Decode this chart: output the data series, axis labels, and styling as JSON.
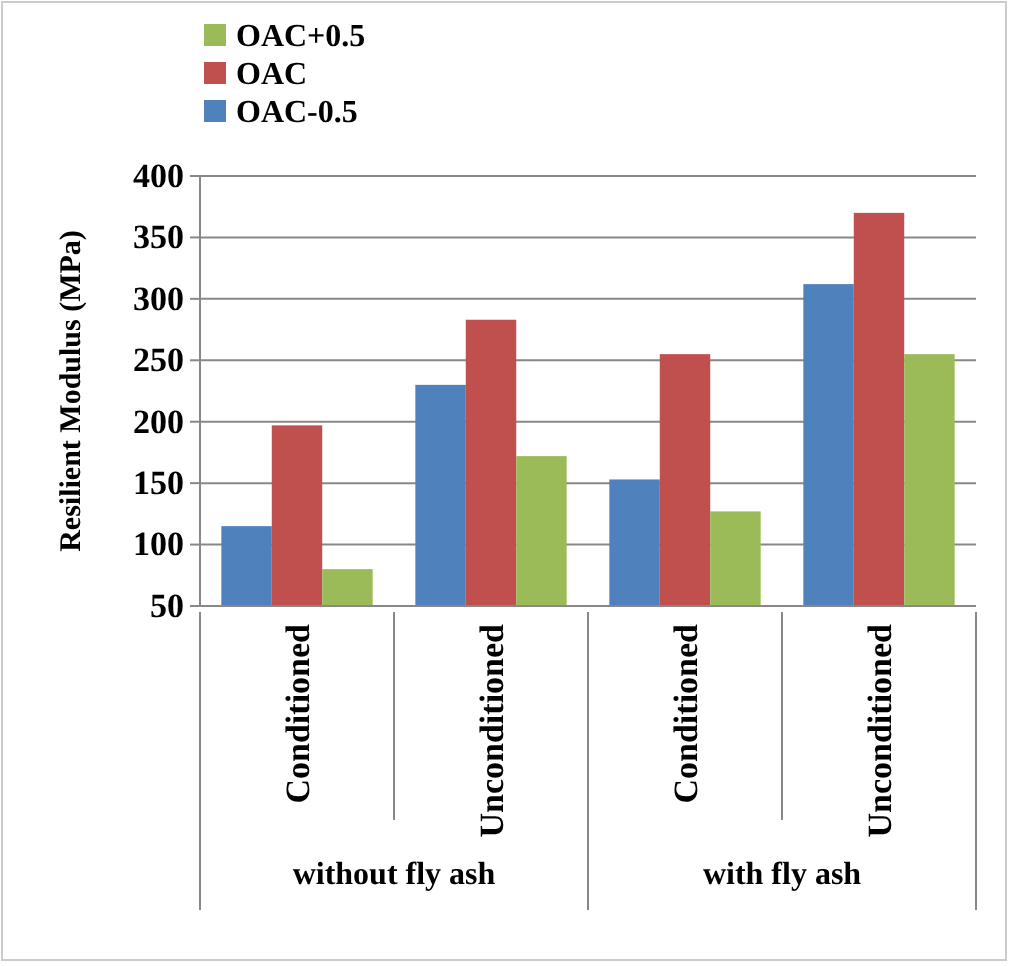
{
  "chart_data": {
    "type": "bar",
    "ylabel": "Resilient Modulus  (MPa)",
    "categories": [
      "Conditioned",
      "Unconditioned",
      "Conditioned",
      "Unconditioned"
    ],
    "series": [
      {
        "name": "OAC-0.5",
        "color": "#4f81bd",
        "values": [
          115,
          230,
          153,
          312
        ]
      },
      {
        "name": "OAC",
        "color": "#c0504d",
        "values": [
          197,
          283,
          255,
          370
        ]
      },
      {
        "name": "OAC+0.5",
        "color": "#9bbb59",
        "values": [
          80,
          172,
          127,
          255
        ]
      }
    ],
    "annotations": [
      "without fly ash",
      "with fly ash"
    ],
    "ylim": [
      50,
      400
    ],
    "yticks": [
      50,
      100,
      150,
      200,
      250,
      300,
      350,
      400
    ],
    "grid": "y",
    "legend": "top left"
  }
}
